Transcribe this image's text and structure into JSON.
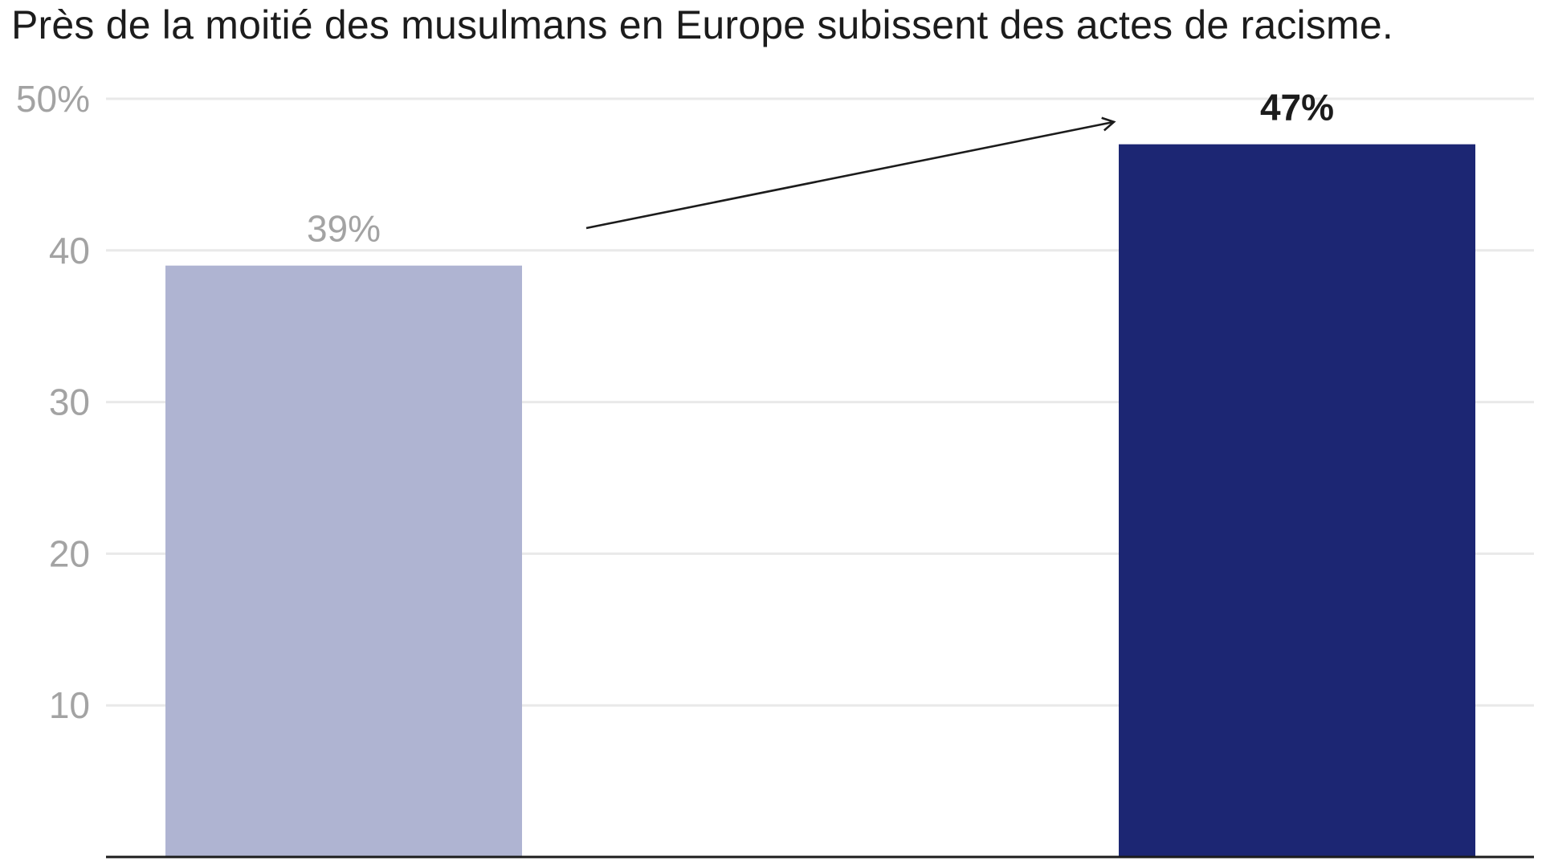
{
  "chart_data": {
    "type": "bar",
    "title": "Près de la moitié des musulmans en Europe subissent des actes de racisme.",
    "categories": [
      "",
      ""
    ],
    "values": [
      39,
      47
    ],
    "value_labels": [
      "39%",
      "47%"
    ],
    "bar_colors": [
      "#afb4d2",
      "#1c2673"
    ],
    "value_label_colors": [
      "#a3a3a3",
      "#1c1c1c"
    ],
    "value_label_bold": [
      false,
      true
    ],
    "y_ticks": [
      10,
      20,
      30,
      40,
      50
    ],
    "y_tick_labels": [
      "10",
      "20",
      "30",
      "40",
      "50%"
    ],
    "ylim": [
      0,
      50
    ],
    "grid": true,
    "annotation": "arrow from first bar to second bar",
    "xlabel": "",
    "ylabel": ""
  },
  "colors": {
    "grid": "#e9e9e9",
    "axis": "#1c1c1c",
    "tick_text": "#a3a3a3",
    "arrow": "#1c1c1c"
  }
}
